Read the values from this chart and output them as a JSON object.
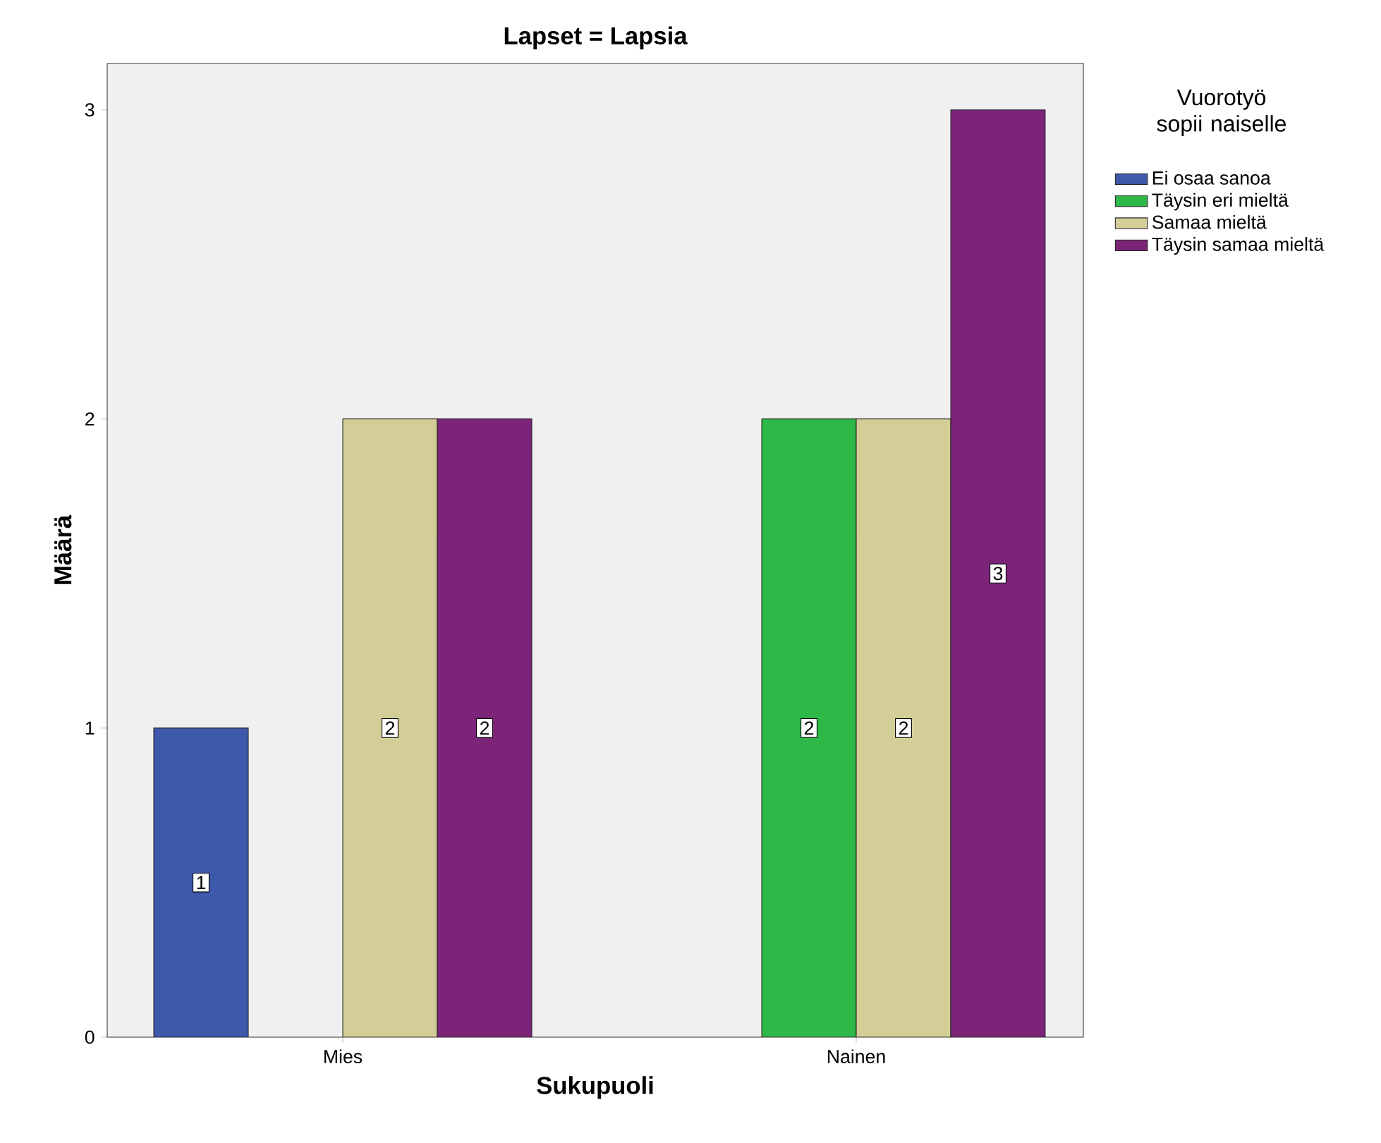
{
  "chart_data": {
    "type": "bar",
    "title": "Lapset = Lapsia",
    "xlabel": "Sukupuoli",
    "ylabel": "Määrä",
    "legend_title": "Vuorotyö sopii naiselle",
    "categories": [
      "Mies",
      "Nainen"
    ],
    "series": [
      {
        "name": "Ei osaa sanoa",
        "color": "#3e58ac",
        "values": [
          1,
          null
        ]
      },
      {
        "name": "Täysin eri mieltä",
        "color": "#2eb848",
        "values": [
          null,
          2
        ]
      },
      {
        "name": "Samaa mieltä",
        "color": "#d3ce97",
        "values": [
          2,
          2
        ]
      },
      {
        "name": "Täysin samaa mieltä",
        "color": "#7b2478",
        "values": [
          2,
          3
        ]
      }
    ],
    "ylim": [
      0,
      3.15
    ],
    "yticks": [
      0,
      1,
      2,
      3
    ],
    "grid": false,
    "legend": "right",
    "data_labels": true
  }
}
